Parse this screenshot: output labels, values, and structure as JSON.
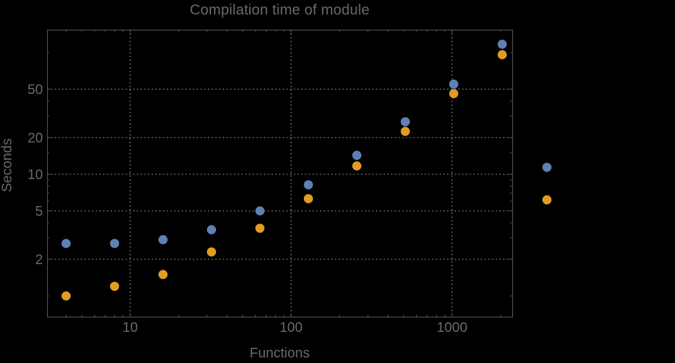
{
  "chart_data": {
    "type": "scatter",
    "title": "Compilation time of module",
    "xlabel": "Functions",
    "ylabel": "Seconds",
    "xscale": "log",
    "yscale": "log",
    "x": [
      4,
      8,
      16,
      32,
      64,
      128,
      256,
      512,
      1024,
      2048
    ],
    "series": [
      {
        "name": "",
        "color": "#5e81b5",
        "values": [
          2.7,
          2.7,
          2.9,
          3.5,
          5.0,
          8.2,
          14.3,
          27,
          55,
          117
        ]
      },
      {
        "name": "",
        "color": "#e19c24",
        "values": [
          1.0,
          1.2,
          1.5,
          2.3,
          3.6,
          6.3,
          11.7,
          22.5,
          46,
          96
        ]
      }
    ],
    "x_axis": {
      "major_ticks": [
        10,
        100,
        1000
      ],
      "major_labels": [
        "10",
        "100",
        "1000"
      ],
      "minor_ticks": [
        4,
        5,
        6,
        7,
        8,
        9,
        20,
        30,
        40,
        50,
        60,
        70,
        80,
        90,
        200,
        300,
        400,
        500,
        600,
        700,
        800,
        900,
        2000
      ],
      "range": [
        3.05,
        2365
      ],
      "gridlines": true
    },
    "y_axis": {
      "major_ticks": [
        2,
        5,
        10,
        20,
        50
      ],
      "major_labels": [
        "2",
        "5",
        "10",
        "20",
        "50"
      ],
      "minor_ticks": [
        1,
        3,
        4,
        6,
        7,
        8,
        9,
        15,
        30,
        40,
        100
      ],
      "range": [
        0.675,
        154
      ],
      "gridlines": true
    },
    "legend": {
      "position": "right-outside",
      "entries": [
        {
          "label": "",
          "color": "#5e81b5"
        },
        {
          "label": "",
          "color": "#e19c24"
        }
      ]
    }
  },
  "colors": {
    "background": "#000000",
    "frame": "#5a5a5a",
    "grid": "#7d7d7d",
    "text": "#696969",
    "series1_blue": "#5e81b5",
    "series2_orange": "#e19c24"
  }
}
